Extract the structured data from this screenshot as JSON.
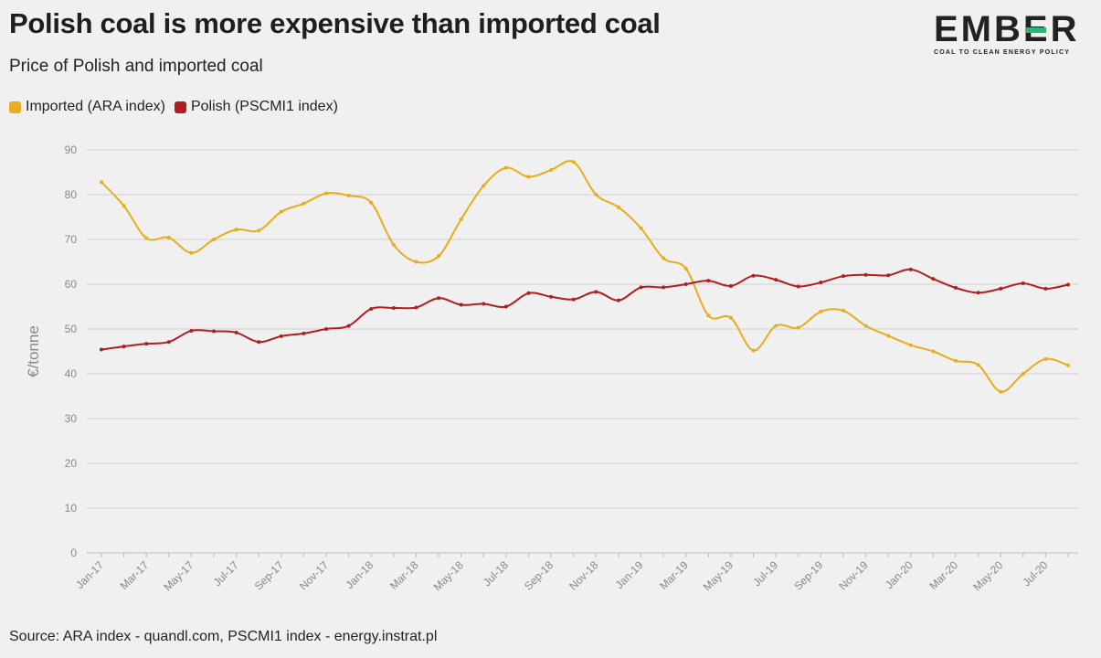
{
  "header": {
    "title": "Polish coal is more expensive than imported coal",
    "subtitle": "Price of Polish and imported coal"
  },
  "logo": {
    "text_before": "EMB",
    "text_mark": "E",
    "text_after": "R",
    "tagline": "COAL TO CLEAN ENERGY POLICY"
  },
  "footer": {
    "source": "Source: ARA index - quandl.com, PSCMI1 index - energy.instrat.pl"
  },
  "colors": {
    "imported": "#e8ad1c",
    "polish": "#b01e1e",
    "grid": "#cfcfcf",
    "axis_text": "#888888"
  },
  "chart_data": {
    "type": "line",
    "title": "Polish coal is more expensive than imported coal",
    "subtitle": "Price of Polish and imported coal",
    "xlabel": "",
    "ylabel": "€/tonne",
    "ylim": [
      0,
      90
    ],
    "yticks": [
      0,
      10,
      20,
      30,
      40,
      50,
      60,
      70,
      80,
      90
    ],
    "grid": true,
    "legend_position": "top-left",
    "x": [
      "Jan-17",
      "Feb-17",
      "Mar-17",
      "Apr-17",
      "May-17",
      "Jun-17",
      "Jul-17",
      "Aug-17",
      "Sep-17",
      "Oct-17",
      "Nov-17",
      "Dec-17",
      "Jan-18",
      "Feb-18",
      "Mar-18",
      "Apr-18",
      "May-18",
      "Jun-18",
      "Jul-18",
      "Aug-18",
      "Sep-18",
      "Oct-18",
      "Nov-18",
      "Dec-18",
      "Jan-19",
      "Feb-19",
      "Mar-19",
      "Apr-19",
      "May-19",
      "Jun-19",
      "Jul-19",
      "Aug-19",
      "Sep-19",
      "Oct-19",
      "Nov-19",
      "Dec-19",
      "Jan-20",
      "Feb-20",
      "Mar-20",
      "Apr-20",
      "May-20",
      "Jun-20",
      "Jul-20",
      "Aug-20"
    ],
    "x_tick_labels": [
      "Jan-17",
      "Mar-17",
      "May-17",
      "Jul-17",
      "Sep-17",
      "Nov-17",
      "Jan-18",
      "Mar-18",
      "May-18",
      "Jul-18",
      "Sep-18",
      "Nov-18",
      "Jan-19",
      "Mar-19",
      "May-19",
      "Jul-19",
      "Sep-19",
      "Nov-19",
      "Jan-20",
      "Mar-20",
      "May-20",
      "Jul-20"
    ],
    "series": [
      {
        "name": "Imported (ARA index)",
        "color": "#e8ad1c",
        "values": [
          82.8,
          77.5,
          70.3,
          70.4,
          67.0,
          70.0,
          72.2,
          72.0,
          76.2,
          78.0,
          80.3,
          79.8,
          78.2,
          68.8,
          65.0,
          66.3,
          74.5,
          82.0,
          86.0,
          84.0,
          85.5,
          87.3,
          80.0,
          77.2,
          72.5,
          65.8,
          63.5,
          53.0,
          52.5,
          45.2,
          50.7,
          50.3,
          53.9,
          54.1,
          50.7,
          48.5,
          46.4,
          45.0,
          42.9,
          42.0,
          36.0,
          40.0,
          43.3,
          41.9
        ]
      },
      {
        "name": "Polish (PSCMI1 index)",
        "color": "#b01e1e",
        "values": [
          45.4,
          46.1,
          46.7,
          47.1,
          49.6,
          49.5,
          49.2,
          47.1,
          48.4,
          49.0,
          50.0,
          50.7,
          54.5,
          54.7,
          54.8,
          56.9,
          55.4,
          55.6,
          55.0,
          58.0,
          57.2,
          56.6,
          58.3,
          56.4,
          59.3,
          59.3,
          60.0,
          60.8,
          59.6,
          61.9,
          61.0,
          59.5,
          60.4,
          61.8,
          62.1,
          62.0,
          63.3,
          61.2,
          59.2,
          58.1,
          59.0,
          60.2,
          59.0,
          59.9
        ]
      }
    ]
  }
}
